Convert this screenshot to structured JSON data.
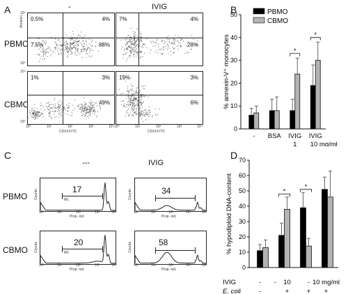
{
  "panel_labels": {
    "a": "A",
    "b": "B",
    "c": "C",
    "d": "D"
  },
  "panel_a": {
    "col_labels": [
      "-",
      "IVIG"
    ],
    "row_labels": [
      "PBMO",
      "CBMO"
    ],
    "y_axis_label": "Annexin",
    "x_axis_label": "CD14 FITC",
    "x_ticks": [
      "10⁰",
      "10¹",
      "10²",
      "10³",
      "10⁴"
    ],
    "y_ticks": [
      "10⁰",
      "10¹",
      "10²",
      "10³",
      "10⁴"
    ],
    "plots": [
      {
        "ul": "0.5%",
        "ur": "4%",
        "ll": "7.5%",
        "lr": "88%"
      },
      {
        "ul": "7%",
        "ur": "4%",
        "ll": "",
        "lr": "28%"
      },
      {
        "ul": "1%",
        "ur": "3%",
        "ll": "",
        "lr": "49%"
      },
      {
        "ul": "19%",
        "ur": "3%",
        "ll": "",
        "lr": "6%"
      }
    ]
  },
  "panel_c": {
    "col_labels": [
      "---",
      "IVIG"
    ],
    "row_labels": [
      "PBMO",
      "CBMO"
    ],
    "y_axis_label": "Counts",
    "x_axis_label": "Prop. iod.",
    "marker_label": "M1",
    "x_ticks": [
      "10⁰",
      "10¹",
      "10²",
      "10³",
      "10⁴"
    ],
    "values": [
      "17",
      "34",
      "20",
      "58"
    ]
  },
  "chart_data": [
    {
      "type": "bar",
      "panel": "B",
      "ylabel": "% annexin-V⁺ monocytes",
      "ylim": [
        0,
        50
      ],
      "yticks": [
        "0",
        "10",
        "20",
        "30",
        "40",
        "50"
      ],
      "categories": [
        "-",
        "BSA",
        "IVIG 1",
        "IVIG 10 mg/ml"
      ],
      "xtick_labels": [
        "-",
        "BSA",
        "IVIG",
        "IVIG"
      ],
      "xtick_sub": [
        "",
        "",
        "1",
        "10 mg/ml"
      ],
      "series": [
        {
          "name": "PBMO",
          "color": "#000000",
          "values": [
            6,
            8,
            8,
            19
          ],
          "errors": [
            3,
            5,
            5,
            9
          ]
        },
        {
          "name": "CBMO",
          "color": "#b3b3b3",
          "values": [
            7,
            8,
            24,
            30
          ],
          "errors": [
            3,
            6,
            7,
            8
          ]
        }
      ],
      "significance": [
        "*",
        "*"
      ],
      "legend_position": "top-right"
    },
    {
      "type": "bar",
      "panel": "D",
      "ylabel": "% hypodiploid DNA-content",
      "ylim": [
        0,
        70
      ],
      "yticks": [
        "0",
        "10",
        "20",
        "30",
        "40",
        "50",
        "60",
        "70"
      ],
      "row1_label": "IVIG",
      "row2_label": "E. coli",
      "row1_values": [
        "-",
        "-",
        "10",
        "-",
        "10 mg/ml"
      ],
      "row2_values": [
        "-",
        "",
        "+",
        "+",
        "+"
      ],
      "series": [
        {
          "name": "PBMO",
          "color": "#000000",
          "values": [
            11,
            21,
            39,
            51
          ],
          "errors": [
            4,
            8,
            10,
            8
          ]
        },
        {
          "name": "CBMO",
          "color": "#b3b3b3",
          "values": [
            13,
            38,
            14,
            46
          ],
          "errors": [
            5,
            8,
            5,
            17
          ]
        }
      ],
      "significance": [
        "*",
        "*"
      ]
    }
  ]
}
